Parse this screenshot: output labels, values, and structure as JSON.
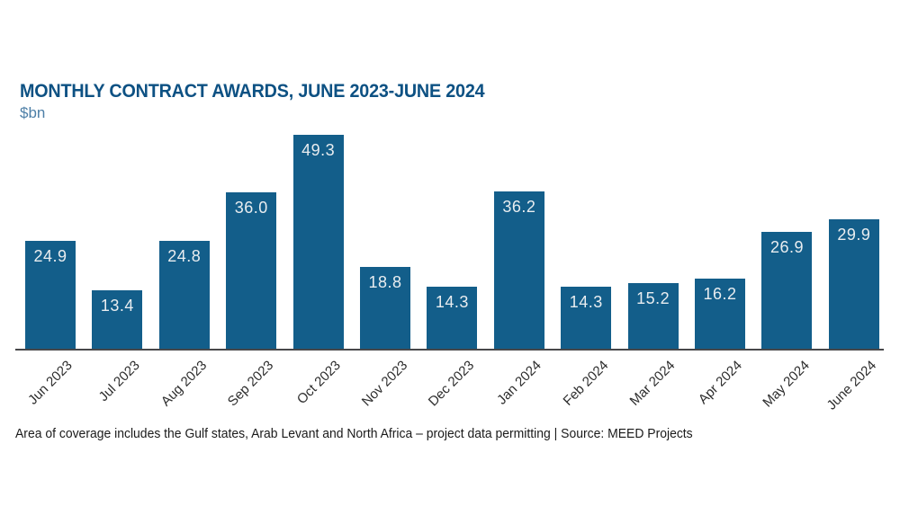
{
  "header": {
    "title": "MONTHLY CONTRACT AWARDS, JUNE 2023-JUNE 2024",
    "subtitle": "$bn"
  },
  "footer": {
    "note": "Area of coverage includes the Gulf states, Arab Levant and North Africa – project data permitting | Source: MEED Projects"
  },
  "colors": {
    "bar": "#135e8a",
    "title": "#0d5183",
    "subtitle": "#4d7fa7",
    "axis_line": "#47474a",
    "value_label": "#e9edf0",
    "tick_label": "#2d2d2d",
    "footer_text": "#1a1a1a"
  },
  "chart_data": {
    "type": "bar",
    "title": "MONTHLY CONTRACT AWARDS, JUNE 2023-JUNE 2024",
    "xlabel": "",
    "ylabel": "$bn",
    "categories": [
      "Jun 2023",
      "Jul 2023",
      "Aug 2023",
      "Sep 2023",
      "Oct 2023",
      "Nov 2023",
      "Dec 2023",
      "Jan 2024",
      "Feb 2024",
      "Mar 2024",
      "Apr 2024",
      "May 2024",
      "June 2024"
    ],
    "values": [
      24.9,
      13.4,
      24.8,
      36.0,
      49.3,
      18.8,
      14.3,
      36.2,
      14.3,
      15.2,
      16.2,
      26.9,
      29.9
    ],
    "value_labels": [
      "24.9",
      "13.4",
      "24.8",
      "36.0",
      "49.3",
      "18.8",
      "14.3",
      "36.2",
      "14.3",
      "15.2",
      "16.2",
      "26.9",
      "29.9"
    ],
    "ylim": [
      0,
      49.3
    ],
    "grid": false,
    "legend": false,
    "bar_label_position": "inside-top"
  }
}
